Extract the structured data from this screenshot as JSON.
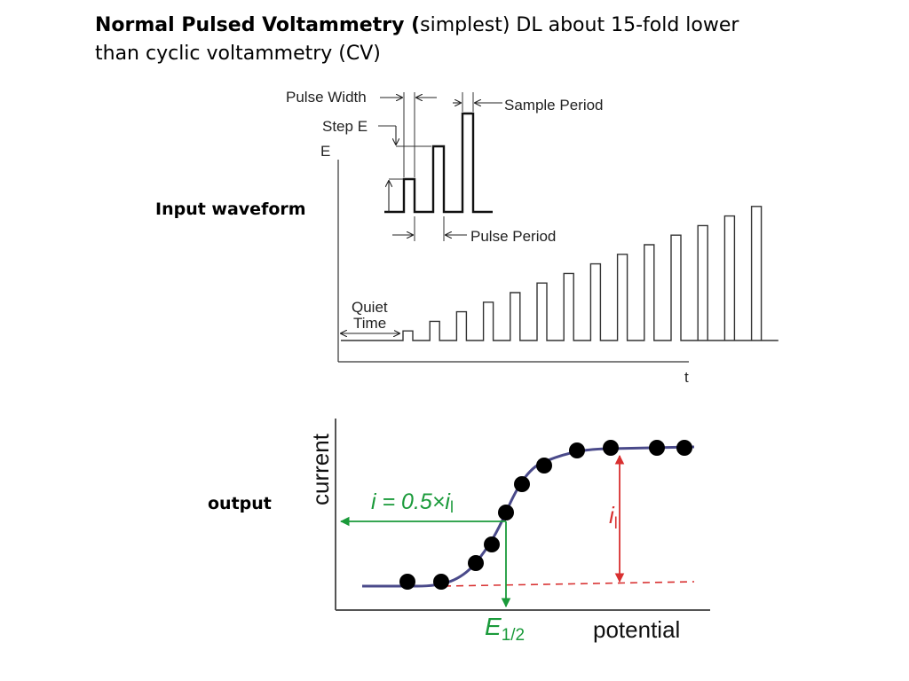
{
  "title": {
    "bold": "Normal Pulsed Voltammetry  (",
    "rest1": "simplest)   DL about 15-fold lower",
    "rest2": "than cyclic voltammetry (CV)"
  },
  "labels": {
    "input_waveform": "Input waveform",
    "output": "output"
  },
  "waveform": {
    "pulse_width": "Pulse Width",
    "step_e": "Step E",
    "sample_period": "Sample Period",
    "pulse_period": "Pulse Period",
    "quiet": "Quiet",
    "time": "Time",
    "e_axis": "E",
    "t_axis": "t",
    "pulse_heights": [
      1,
      2,
      3,
      4,
      5,
      6,
      7,
      8,
      9,
      10,
      11,
      12,
      13,
      14
    ]
  },
  "output_plot": {
    "ylabel": "current",
    "xlabel": "potential",
    "half_current": "i = 0.5×i",
    "half_current_sub": "l",
    "limiting_current": "i",
    "limiting_current_sub": "l",
    "e_half": "E",
    "e_half_sub": "1/2",
    "colors": {
      "curve": "#4a4a8a",
      "green": "#1a9a3a",
      "red": "#d83030",
      "dots": "#000000"
    }
  }
}
